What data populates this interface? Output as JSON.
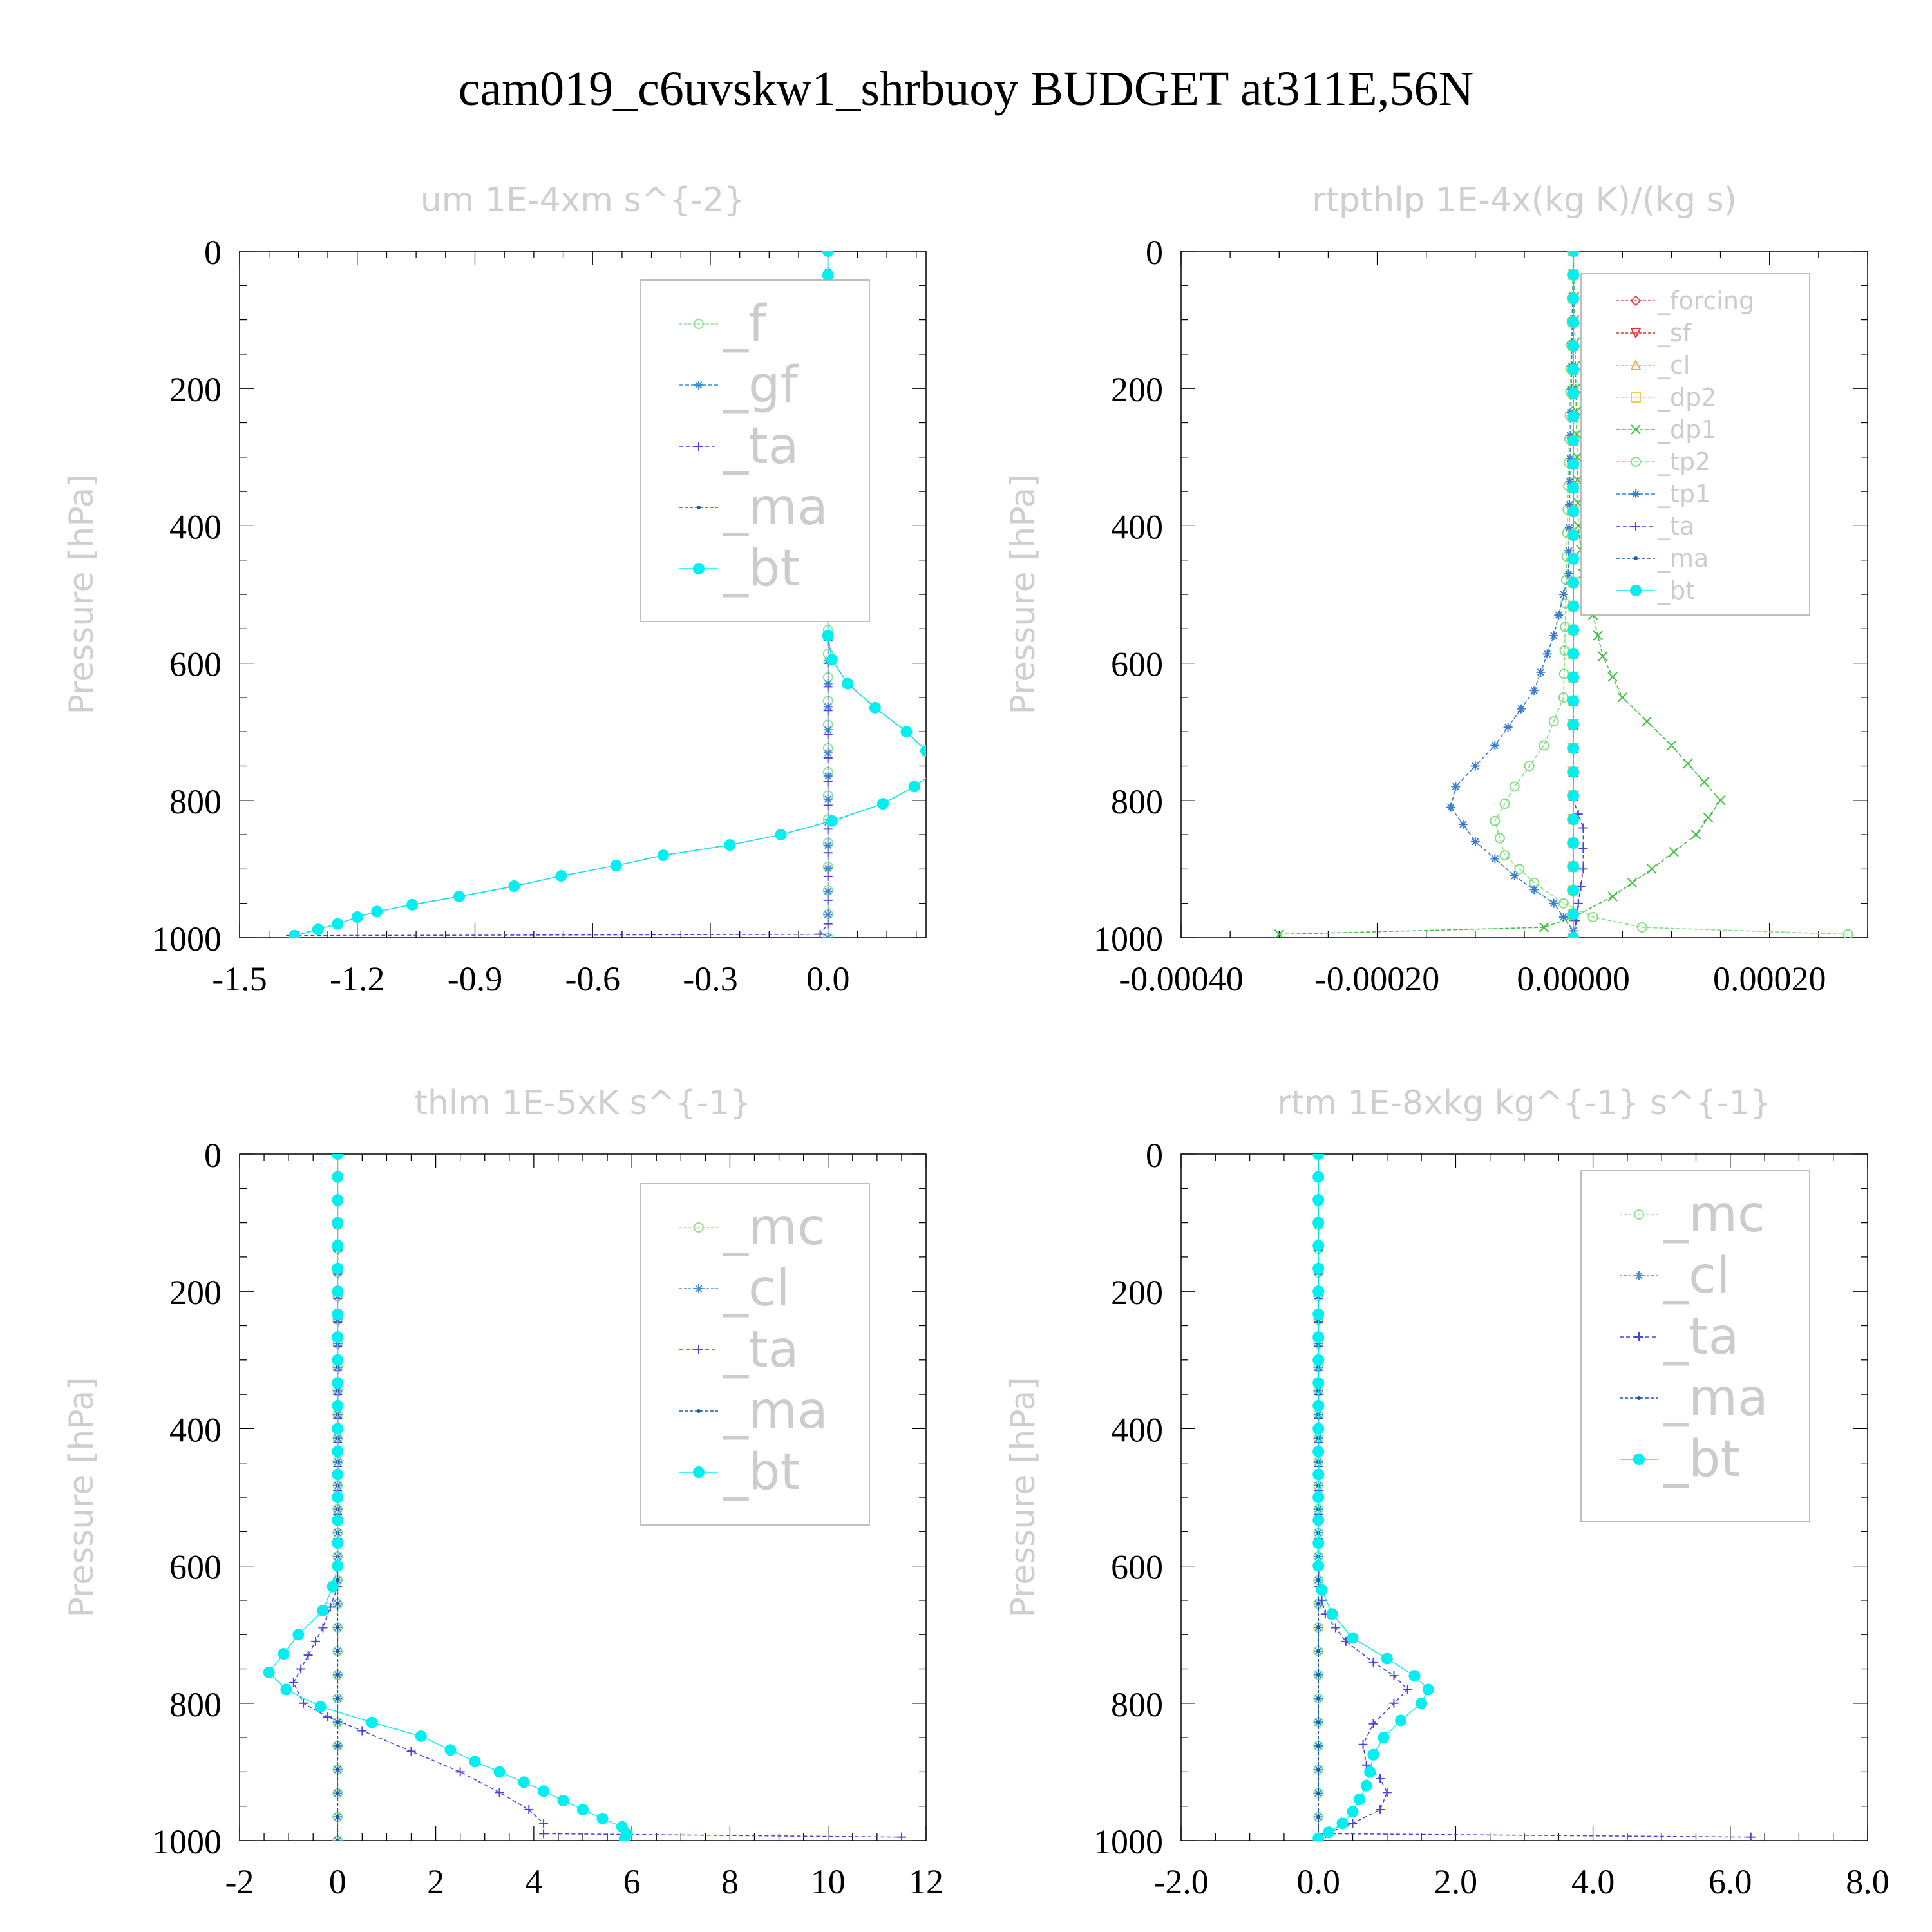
{
  "title": "cam019_c6uvskw1_shrbuoy  BUDGET at311E,56N",
  "colors": {
    "_f": "#8ee88e",
    "_gf": "#3f8fcf",
    "_ta": "#4545d8",
    "_ma": "#1a5aa8",
    "_bt": "#00f0f0",
    "_forcing": "#e05050",
    "_sf": "#e83030",
    "_cl": "#4a90cf",
    "_dp2": "#f0d040",
    "_dp1": "#40c040",
    "_tp2": "#80e080",
    "_tp1": "#3a7ecf",
    "_mc": "#8ee88e",
    "_cl_rt": "#f0b040"
  },
  "chart_data": [
    {
      "type": "line",
      "title": "um  1E-4xm s^{-2}",
      "ylabel": "Pressure [hPa]",
      "xlim": [
        -1.5,
        0.25
      ],
      "ylim": [
        1000,
        0
      ],
      "xticks": [
        "-1.5",
        "-1.2",
        "-0.9",
        "-0.6",
        "-0.3",
        "0.0"
      ],
      "xtick_values": [
        -1.5,
        -1.2,
        -0.9,
        -0.6,
        -0.3,
        0.0
      ],
      "yticks": [
        "0",
        "200",
        "400",
        "600",
        "800",
        "1000"
      ],
      "legend_size": "large",
      "legend": [
        "_f",
        "_gf",
        "_ta",
        "_ma",
        "_bt"
      ],
      "series": [
        {
          "name": "_f",
          "marker": "circle",
          "dash": "4,3",
          "x": [
            0,
            0
          ],
          "y": [
            0,
            1000
          ]
        },
        {
          "name": "_gf",
          "marker": "star",
          "dash": "6,3",
          "x": [
            0,
            0,
            -0.01,
            -0.01,
            0,
            0
          ],
          "y": [
            0,
            180,
            210,
            230,
            260,
            1000
          ]
        },
        {
          "name": "_ta",
          "marker": "plus",
          "dash": "6,4",
          "x": [
            0,
            0,
            0,
            -0.02,
            -1.37
          ],
          "y": [
            0,
            600,
            980,
            995,
            997
          ]
        },
        {
          "name": "_ma",
          "marker": "dot",
          "dash": "5,3",
          "x": [
            0,
            0,
            0.01,
            0.05,
            0.12,
            0.2,
            0.25,
            0.28,
            0.22,
            0.14,
            0.01,
            -0.12,
            -0.25,
            -0.42,
            -0.54,
            -0.68,
            -0.8,
            -0.94,
            -1.06,
            -1.15,
            -1.2,
            -1.25,
            -1.3,
            -1.36
          ],
          "y": [
            0,
            560,
            595,
            630,
            665,
            700,
            728,
            755,
            780,
            805,
            830,
            850,
            865,
            880,
            895,
            910,
            925,
            940,
            952,
            962,
            970,
            980,
            988,
            997
          ]
        },
        {
          "name": "_bt",
          "marker": "bigdot",
          "dash": "",
          "x": [
            0,
            0,
            0.01,
            0.05,
            0.12,
            0.2,
            0.25,
            0.28,
            0.22,
            0.14,
            0.01,
            -0.12,
            -0.25,
            -0.42,
            -0.54,
            -0.68,
            -0.8,
            -0.94,
            -1.06,
            -1.15,
            -1.2,
            -1.25,
            -1.3,
            -1.36
          ],
          "y": [
            0,
            560,
            595,
            630,
            665,
            700,
            728,
            755,
            780,
            805,
            830,
            850,
            865,
            880,
            895,
            910,
            925,
            940,
            952,
            962,
            970,
            980,
            988,
            997
          ]
        }
      ]
    },
    {
      "type": "line",
      "title": "rtpthlp  1E-4x(kg K)/(kg s)",
      "ylabel": "Pressure [hPa]",
      "xlim": [
        -0.0004,
        0.0003
      ],
      "ylim": [
        1000,
        0
      ],
      "xticks": [
        "-0.00040",
        "-0.00020",
        "0.00000",
        "0.00020"
      ],
      "xtick_values": [
        -0.0004,
        -0.0002,
        0.0,
        0.0002
      ],
      "yticks": [
        "0",
        "200",
        "400",
        "600",
        "800",
        "1000"
      ],
      "legend_size": "small",
      "legend": [
        "_forcing",
        "_sf",
        "_cl",
        "_dp2",
        "_dp1",
        "_tp2",
        "_tp1",
        "_ta",
        "_ma",
        "_bt"
      ],
      "series": [
        {
          "name": "_forcing",
          "color": "_forcing",
          "marker": "diamond",
          "dash": "4,3",
          "x": [
            0,
            0
          ],
          "y": [
            0,
            1000
          ]
        },
        {
          "name": "_sf",
          "color": "_sf",
          "marker": "tri-down",
          "dash": "4,3",
          "x": [
            0,
            0
          ],
          "y": [
            0,
            1000
          ]
        },
        {
          "name": "_cl",
          "color": "_cl_rt",
          "marker": "tri-up",
          "dash": "4,3",
          "x": [
            0,
            0
          ],
          "y": [
            0,
            1000
          ]
        },
        {
          "name": "_dp2",
          "color": "_dp2",
          "marker": "square",
          "dash": "4,3",
          "x": [
            0,
            0
          ],
          "y": [
            0,
            1000
          ]
        },
        {
          "name": "_dp1",
          "color": "_dp1",
          "marker": "cross",
          "dash": "6,3",
          "x": [
            0,
            5e-06,
            1e-05,
            2e-05,
            3e-05,
            5e-05,
            0.0001,
            0.00015,
            0.000125,
            8e-05,
            4e-05,
            0.0,
            -3e-05,
            -0.0003
          ],
          "y": [
            0,
            400,
            470,
            530,
            590,
            650,
            720,
            800,
            850,
            900,
            940,
            970,
            985,
            995
          ]
        },
        {
          "name": "_tp2",
          "color": "_tp2",
          "marker": "circle",
          "dash": "6,3",
          "x": [
            0,
            -1e-05,
            -3e-05,
            -6e-05,
            -8e-05,
            -7e-05,
            -4e-05,
            -1e-05,
            2e-05,
            7e-05,
            0.00028
          ],
          "y": [
            0,
            650,
            720,
            780,
            830,
            880,
            920,
            950,
            970,
            985,
            995
          ]
        },
        {
          "name": "_tp1",
          "color": "_tp1",
          "marker": "star",
          "dash": "6,3",
          "x": [
            0,
            -5e-06,
            -2e-05,
            -4e-05,
            -8e-05,
            -0.00012,
            -0.000125,
            -0.0001,
            -6e-05,
            -2e-05,
            0.0
          ],
          "y": [
            0,
            470,
            560,
            640,
            720,
            780,
            810,
            860,
            910,
            950,
            990
          ]
        },
        {
          "name": "_ta",
          "color": "_ta",
          "marker": "plus",
          "dash": "6,4",
          "x": [
            0,
            0,
            1e-05,
            1e-05,
            5e-06,
            0
          ],
          "y": [
            0,
            800,
            840,
            900,
            950,
            1000
          ]
        },
        {
          "name": "_ma",
          "color": "_ma",
          "marker": "dot",
          "dash": "5,3",
          "x": [
            0,
            0
          ],
          "y": [
            0,
            1000
          ]
        },
        {
          "name": "_bt",
          "color": "_bt",
          "marker": "bigdot",
          "dash": "",
          "x": [
            0,
            0
          ],
          "y": [
            0,
            1000
          ]
        }
      ]
    },
    {
      "type": "line",
      "title": "thlm  1E-5xK s^{-1}",
      "ylabel": "Pressure [hPa]",
      "xlim": [
        -2,
        12
      ],
      "ylim": [
        1000,
        0
      ],
      "xticks": [
        "-2",
        "0",
        "2",
        "4",
        "6",
        "8",
        "10",
        "12"
      ],
      "xtick_values": [
        -2,
        0,
        2,
        4,
        6,
        8,
        10,
        12
      ],
      "yticks": [
        "0",
        "200",
        "400",
        "600",
        "800",
        "1000"
      ],
      "legend_size": "large",
      "legend": [
        "_mc",
        "_cl",
        "_ta",
        "_ma",
        "_bt"
      ],
      "series": [
        {
          "name": "_mc",
          "color": "_mc",
          "marker": "circle",
          "dash": "4,3",
          "x": [
            0,
            0
          ],
          "y": [
            0,
            1000
          ]
        },
        {
          "name": "_cl",
          "color": "_cl",
          "marker": "star",
          "dash": "4,3",
          "x": [
            0,
            0
          ],
          "y": [
            0,
            1000
          ]
        },
        {
          "name": "_ta",
          "color": "_ta",
          "marker": "plus",
          "dash": "6,4",
          "x": [
            0,
            0,
            -0.3,
            -0.6,
            -0.9,
            -0.7,
            -0.2,
            0.5,
            1.5,
            2.5,
            3.3,
            3.9,
            4.2,
            4.2,
            11.5
          ],
          "y": [
            0,
            630,
            690,
            730,
            770,
            800,
            820,
            840,
            870,
            900,
            930,
            955,
            975,
            990,
            995
          ]
        },
        {
          "name": "_ma",
          "color": "_ma",
          "marker": "dot",
          "dash": "5,3",
          "x": [
            0,
            0
          ],
          "y": [
            0,
            1000
          ]
        },
        {
          "name": "_bt",
          "color": "_bt",
          "marker": "bigdot",
          "dash": "",
          "x": [
            0,
            0,
            -0.1,
            -0.3,
            -0.8,
            -1.1,
            -1.4,
            -1.05,
            -0.35,
            0.7,
            1.7,
            2.3,
            2.8,
            3.3,
            3.8,
            4.2,
            4.6,
            5.0,
            5.4,
            5.8,
            5.9,
            5.85
          ],
          "y": [
            0,
            600,
            630,
            665,
            700,
            728,
            755,
            780,
            805,
            828,
            848,
            868,
            885,
            900,
            915,
            928,
            942,
            955,
            968,
            980,
            990,
            997
          ]
        }
      ]
    },
    {
      "type": "line",
      "title": "rtm  1E-8xkg kg^{-1} s^{-1}",
      "ylabel": "Pressure [hPa]",
      "xlim": [
        -2.0,
        8.0
      ],
      "ylim": [
        1000,
        0
      ],
      "xticks": [
        "-2.0",
        "0.0",
        "2.0",
        "4.0",
        "6.0",
        "8.0"
      ],
      "xtick_values": [
        -2,
        0,
        2,
        4,
        6,
        8
      ],
      "yticks": [
        "0",
        "200",
        "400",
        "600",
        "800",
        "1000"
      ],
      "legend_size": "large",
      "legend": [
        "_mc",
        "_cl",
        "_ta",
        "_ma",
        "_bt"
      ],
      "series": [
        {
          "name": "_mc",
          "color": "_mc",
          "marker": "circle",
          "dash": "4,3",
          "x": [
            0,
            0
          ],
          "y": [
            0,
            1000
          ]
        },
        {
          "name": "_cl",
          "color": "_cl",
          "marker": "star",
          "dash": "4,3",
          "x": [
            0,
            0
          ],
          "y": [
            0,
            1000
          ]
        },
        {
          "name": "_ta",
          "color": "_ta",
          "marker": "plus",
          "dash": "6,4",
          "x": [
            0,
            0,
            0.1,
            0.4,
            0.8,
            1.1,
            1.3,
            1.1,
            0.8,
            0.65,
            0.7,
            0.9,
            1.0,
            0.9,
            0.5,
            0.1,
            6.3
          ],
          "y": [
            0,
            630,
            670,
            710,
            740,
            760,
            780,
            800,
            830,
            860,
            890,
            910,
            930,
            955,
            975,
            990,
            995
          ]
        },
        {
          "name": "_ma",
          "color": "_ma",
          "marker": "dot",
          "dash": "5,3",
          "x": [
            0,
            0
          ],
          "y": [
            0,
            1000
          ]
        },
        {
          "name": "_bt",
          "color": "_bt",
          "marker": "bigdot",
          "dash": "",
          "x": [
            0,
            0,
            0.05,
            0.2,
            0.5,
            1.0,
            1.4,
            1.6,
            1.5,
            1.2,
            0.95,
            0.8,
            0.75,
            0.7,
            0.6,
            0.5,
            0.35,
            0.15,
            0.0
          ],
          "y": [
            0,
            600,
            635,
            670,
            705,
            735,
            760,
            780,
            800,
            825,
            850,
            875,
            900,
            920,
            940,
            958,
            975,
            988,
            997
          ]
        }
      ]
    }
  ]
}
